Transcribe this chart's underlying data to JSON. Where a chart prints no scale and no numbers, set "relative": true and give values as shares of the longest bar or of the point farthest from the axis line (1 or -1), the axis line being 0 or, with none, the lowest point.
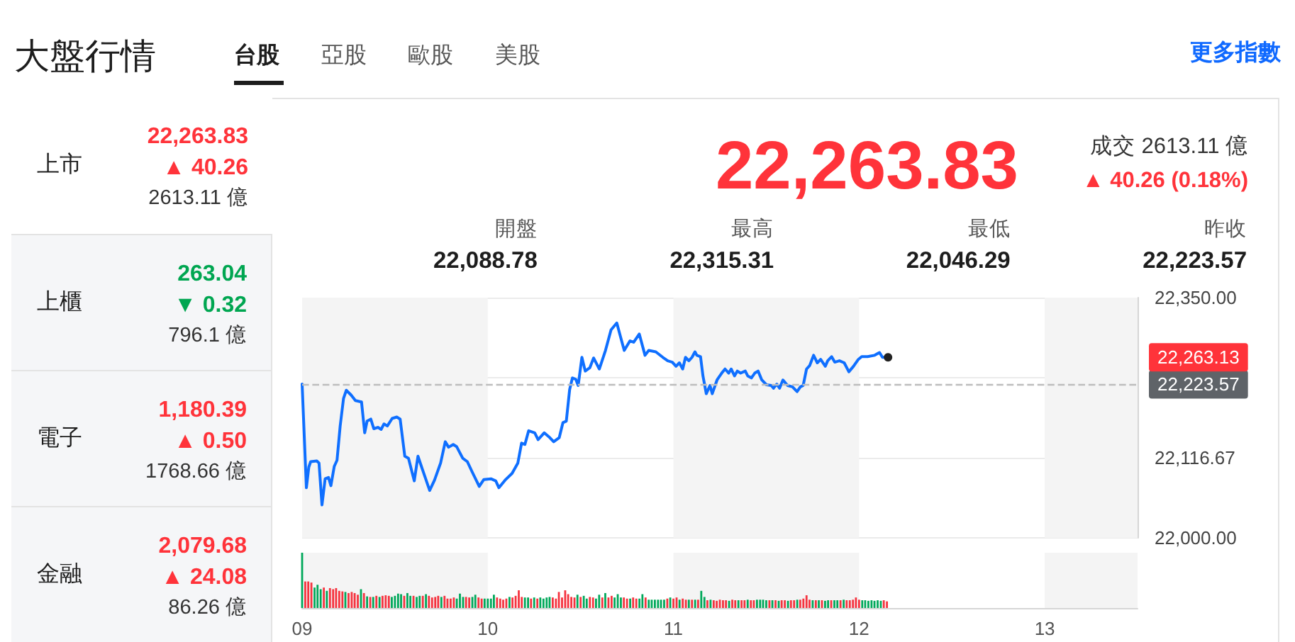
{
  "chart_data": [
    {
      "type": "other",
      "title": "大盤行情",
      "categories": [
        "台股",
        "亞股",
        "歐股",
        "美股"
      ],
      "annotations": [
        "更多指數"
      ]
    },
    {
      "type": "other",
      "title": "22,263.83",
      "subtitle": "▲ 40.26",
      "color": "#ff333a",
      "annotations": [
        "上市",
        "2613.11 億"
      ]
    },
    {
      "type": "other",
      "title": "263.04",
      "subtitle": "▼ 0.32",
      "color": "#00a651",
      "annotations": [
        "上櫃",
        "796.1 億"
      ]
    },
    {
      "type": "other",
      "title": "1,180.39",
      "subtitle": "▲ 0.50",
      "color": "#ff333a",
      "annotations": [
        "電子",
        "1768.66 億"
      ]
    },
    {
      "type": "other",
      "title": "2,079.68",
      "subtitle": "▲ 24.08",
      "color": "#ff333a",
      "annotations": [
        "金融",
        "86.26 億"
      ]
    },
    {
      "type": "other",
      "title": "22,263.83",
      "color": "#ff333a",
      "annotations": [
        "成交 2613.11 億",
        "▲ 40.26 (0.18%)"
      ],
      "categories": [
        "開盤",
        "最高",
        "最低",
        "昨收"
      ],
      "value_labels": [
        "22,088.78",
        "22,315.31",
        "22,046.29",
        "22,223.57"
      ]
    },
    {
      "type": "line",
      "color": "#0f6fff",
      "xlim": [
        9,
        13.5
      ],
      "ylim": [
        22000,
        22350
      ],
      "yticks": [
        {
          "value": 22000,
          "label": "22,000.00"
        },
        {
          "value": 22116.67,
          "label": "22,116.67"
        },
        {
          "value": 22233.33,
          "label": null
        },
        {
          "value": 22350,
          "label": "22,350.00"
        }
      ],
      "grid": "y",
      "tick_labels": "y",
      "x": [
        9,
        9.023,
        9.036,
        9.046,
        9.079,
        9.091,
        9.107,
        9.124,
        9.142,
        9.155,
        9.173,
        9.188,
        9.205,
        9.223,
        9.238,
        9.264,
        9.287,
        9.32,
        9.337,
        9.35,
        9.37,
        9.386,
        9.408,
        9.426,
        9.441,
        9.459,
        9.485,
        9.51,
        9.528,
        9.553,
        9.573,
        9.604,
        9.624,
        9.649,
        9.687,
        9.713,
        9.746,
        9.771,
        9.789,
        9.814,
        9.832,
        9.865,
        9.89,
        9.916,
        9.954,
        9.979,
        10.017,
        10.043,
        10.06,
        10.093,
        10.131,
        10.162,
        10.182,
        10.2,
        10.22,
        10.253,
        10.271,
        10.304,
        10.334,
        10.355,
        10.385,
        10.405,
        10.423,
        10.441,
        10.456,
        10.474,
        10.487,
        10.507,
        10.525,
        10.55,
        10.57,
        10.601,
        10.634,
        10.664,
        10.695,
        10.715,
        10.735,
        10.766,
        10.786,
        10.816,
        10.847,
        10.867,
        10.905,
        10.943,
        10.969,
        10.994,
        11.014,
        11.032,
        11.05,
        11.065,
        11.083,
        11.1,
        11.116,
        11.126,
        11.146,
        11.159,
        11.177,
        11.197,
        11.209,
        11.235,
        11.26,
        11.278,
        11.298,
        11.311,
        11.329,
        11.344,
        11.362,
        11.387,
        11.4,
        11.42,
        11.438,
        11.456,
        11.476,
        11.501,
        11.527,
        11.539,
        11.557,
        11.572,
        11.59,
        11.615,
        11.641,
        11.666,
        11.684,
        11.699,
        11.717,
        11.734,
        11.755,
        11.775,
        11.793,
        11.818,
        11.831,
        11.852,
        11.869,
        11.894,
        11.92,
        11.945,
        11.97,
        11.996,
        12.014,
        12.046,
        12.084,
        12.11,
        12.126,
        12.156
      ],
      "values": [
        22224,
        22073,
        22103,
        22111,
        22112,
        22109,
        22048,
        22086,
        22088,
        22076,
        22104,
        22113,
        22163,
        22203,
        22215,
        22208,
        22200,
        22198,
        22153,
        22170,
        22173,
        22159,
        22161,
        22158,
        22166,
        22163,
        22174,
        22176,
        22173,
        22119,
        22116,
        22083,
        22119,
        22099,
        22069,
        22084,
        22109,
        22140,
        22132,
        22136,
        22133,
        22116,
        22111,
        22096,
        22075,
        22085,
        22086,
        22083,
        22073,
        22084,
        22094,
        22109,
        22138,
        22136,
        22156,
        22153,
        22143,
        22153,
        22146,
        22140,
        22146,
        22168,
        22170,
        22216,
        22233,
        22231,
        22222,
        22263,
        22243,
        22248,
        22262,
        22246,
        22273,
        22303,
        22313,
        22293,
        22273,
        22287,
        22285,
        22297,
        22266,
        22273,
        22271,
        22263,
        22258,
        22256,
        22250,
        22255,
        22246,
        22263,
        22258,
        22263,
        22271,
        22266,
        22264,
        22236,
        22210,
        22222,
        22210,
        22230,
        22240,
        22246,
        22240,
        22246,
        22236,
        22243,
        22240,
        22243,
        22236,
        22233,
        22240,
        22243,
        22230,
        22223,
        22222,
        22218,
        22224,
        22218,
        22230,
        22222,
        22220,
        22213,
        22220,
        22222,
        22246,
        22251,
        22266,
        22255,
        22260,
        22250,
        22258,
        22264,
        22256,
        22258,
        22255,
        22242,
        22250,
        22260,
        22264,
        22264,
        22266,
        22270,
        22263,
        22263
      ],
      "ref_lines": [
        {
          "axis": "y",
          "value": 22223.57,
          "label": "22,223.57",
          "color": "#bdbdbd",
          "line_style": "dashed"
        }
      ],
      "bands": [
        {
          "axis": "x",
          "from": 9,
          "to": 10,
          "color": "#f4f4f4"
        },
        {
          "axis": "x",
          "from": 11,
          "to": 12,
          "color": "#f4f4f4"
        },
        {
          "axis": "x",
          "from": 13,
          "to": 13.5,
          "color": "#f4f4f4"
        }
      ],
      "annotations": [
        {
          "text": "22,263.13",
          "x": 13.5,
          "y": 22263.13
        }
      ]
    },
    {
      "type": "bar",
      "relative": true,
      "xlim": [
        9,
        13.5
      ],
      "xticks": [
        {
          "value": 9,
          "label": "09"
        },
        10,
        11,
        12,
        13
      ],
      "tick_labels": "x",
      "bands": [
        {
          "axis": "x",
          "from": 9,
          "to": 10,
          "color": "#f4f4f4"
        },
        {
          "axis": "x",
          "from": 11,
          "to": 12,
          "color": "#f4f4f4"
        },
        {
          "axis": "x",
          "from": 13,
          "to": 13.5,
          "color": "#f4f4f4"
        }
      ],
      "x": [
        9,
        9.017,
        9.033,
        9.05,
        9.067,
        9.083,
        9.1,
        9.117,
        9.133,
        9.15,
        9.167,
        9.183,
        9.2,
        9.217,
        9.233,
        9.25,
        9.267,
        9.283,
        9.3,
        9.317,
        9.333,
        9.35,
        9.367,
        9.383,
        9.4,
        9.417,
        9.433,
        9.45,
        9.467,
        9.483,
        9.5,
        9.517,
        9.533,
        9.55,
        9.567,
        9.583,
        9.6,
        9.617,
        9.633,
        9.65,
        9.667,
        9.683,
        9.7,
        9.717,
        9.733,
        9.75,
        9.767,
        9.783,
        9.8,
        9.817,
        9.833,
        9.85,
        9.867,
        9.883,
        9.9,
        9.917,
        9.933,
        9.95,
        9.967,
        9.983,
        10,
        10.017,
        10.033,
        10.05,
        10.067,
        10.083,
        10.1,
        10.117,
        10.133,
        10.15,
        10.167,
        10.183,
        10.2,
        10.217,
        10.233,
        10.25,
        10.267,
        10.283,
        10.3,
        10.317,
        10.333,
        10.35,
        10.367,
        10.383,
        10.4,
        10.417,
        10.433,
        10.45,
        10.467,
        10.483,
        10.5,
        10.517,
        10.533,
        10.55,
        10.567,
        10.583,
        10.6,
        10.617,
        10.633,
        10.65,
        10.667,
        10.683,
        10.7,
        10.717,
        10.733,
        10.75,
        10.767,
        10.783,
        10.8,
        10.817,
        10.833,
        10.85,
        10.867,
        10.883,
        10.9,
        10.917,
        10.933,
        10.95,
        10.967,
        10.983,
        11,
        11.017,
        11.033,
        11.05,
        11.067,
        11.083,
        11.1,
        11.117,
        11.133,
        11.15,
        11.167,
        11.183,
        11.2,
        11.217,
        11.233,
        11.25,
        11.267,
        11.283,
        11.3,
        11.317,
        11.333,
        11.35,
        11.367,
        11.383,
        11.4,
        11.417,
        11.433,
        11.45,
        11.467,
        11.483,
        11.5,
        11.517,
        11.533,
        11.55,
        11.567,
        11.583,
        11.6,
        11.617,
        11.633,
        11.65,
        11.667,
        11.683,
        11.7,
        11.717,
        11.733,
        11.75,
        11.767,
        11.783,
        11.8,
        11.817,
        11.833,
        11.85,
        11.867,
        11.883,
        11.9,
        11.917,
        11.933,
        11.95,
        11.967,
        11.983,
        12,
        12.017,
        12.033,
        12.05,
        12.067,
        12.083,
        12.1,
        12.117,
        12.133,
        12.15
      ],
      "values": [
        1,
        0.48,
        0.48,
        0.46,
        0.37,
        0.42,
        0.34,
        0.37,
        0.31,
        0.36,
        0.34,
        0.36,
        0.31,
        0.3,
        0.29,
        0.27,
        0.29,
        0.27,
        0.24,
        0.34,
        0.27,
        0.21,
        0.2,
        0.2,
        0.22,
        0.2,
        0.22,
        0.23,
        0.22,
        0.2,
        0.22,
        0.26,
        0.25,
        0.22,
        0.27,
        0.22,
        0.22,
        0.2,
        0.22,
        0.22,
        0.25,
        0.22,
        0.19,
        0.2,
        0.22,
        0.2,
        0.22,
        0.17,
        0.17,
        0.19,
        0.17,
        0.26,
        0.2,
        0.2,
        0.19,
        0.2,
        0.24,
        0.19,
        0.17,
        0.17,
        0.17,
        0.17,
        0.24,
        0.19,
        0.17,
        0.15,
        0.17,
        0.2,
        0.19,
        0.22,
        0.32,
        0.2,
        0.19,
        0.19,
        0.17,
        0.19,
        0.17,
        0.19,
        0.17,
        0.19,
        0.2,
        0.19,
        0.17,
        0.29,
        0.19,
        0.32,
        0.25,
        0.2,
        0.19,
        0.24,
        0.2,
        0.22,
        0.17,
        0.2,
        0.19,
        0.17,
        0.24,
        0.19,
        0.27,
        0.19,
        0.22,
        0.19,
        0.25,
        0.19,
        0.19,
        0.17,
        0.17,
        0.19,
        0.17,
        0.17,
        0.25,
        0.19,
        0.15,
        0.15,
        0.15,
        0.15,
        0.15,
        0.15,
        0.17,
        0.19,
        0.17,
        0.19,
        0.15,
        0.17,
        0.15,
        0.15,
        0.15,
        0.15,
        0.15,
        0.31,
        0.2,
        0.14,
        0.15,
        0.14,
        0.13,
        0.15,
        0.14,
        0.14,
        0.13,
        0.15,
        0.14,
        0.14,
        0.14,
        0.14,
        0.15,
        0.14,
        0.14,
        0.15,
        0.15,
        0.15,
        0.14,
        0.14,
        0.14,
        0.14,
        0.13,
        0.14,
        0.14,
        0.13,
        0.14,
        0.14,
        0.15,
        0.15,
        0.17,
        0.23,
        0.15,
        0.14,
        0.14,
        0.14,
        0.14,
        0.13,
        0.14,
        0.14,
        0.14,
        0.14,
        0.14,
        0.15,
        0.14,
        0.14,
        0.15,
        0.19,
        0.15,
        0.14,
        0.14,
        0.13,
        0.14,
        0.13,
        0.14,
        0.13,
        0.14,
        0.12
      ],
      "colors": [
        "#00a85a",
        "#f5333f",
        "#f5333f",
        "#f5333f",
        "#00a85a",
        "#00a85a",
        "#00a85a",
        "#f5333f",
        "#00a85a",
        "#f5333f",
        "#f5333f",
        "#f5333f",
        "#f5333f",
        "#f5333f",
        "#00a85a",
        "#f5333f",
        "#f5333f",
        "#f5333f",
        "#f5333f",
        "#00a85a",
        "#f5333f",
        "#00a85a",
        "#f5333f",
        "#00a85a",
        "#f5333f",
        "#00a85a",
        "#f5333f",
        "#f5333f",
        "#f5333f",
        "#00a85a",
        "#00a85a",
        "#00a85a",
        "#00a85a",
        "#f5333f",
        "#00a85a",
        "#00a85a",
        "#f5333f",
        "#00a85a",
        "#00a85a",
        "#f5333f",
        "#00a85a",
        "#f5333f",
        "#f5333f",
        "#f5333f",
        "#f5333f",
        "#00a85a",
        "#f5333f",
        "#f5333f",
        "#f5333f",
        "#f5333f",
        "#00a85a",
        "#00a85a",
        "#00a85a",
        "#f5333f",
        "#f5333f",
        "#00a85a",
        "#00a85a",
        "#f5333f",
        "#f5333f",
        "#00a85a",
        "#00a85a",
        "#00a85a",
        "#00a85a",
        "#f5333f",
        "#f5333f",
        "#f5333f",
        "#f5333f",
        "#00a85a",
        "#f5333f",
        "#f5333f",
        "#f5333f",
        "#f5333f",
        "#00a85a",
        "#00a85a",
        "#f5333f",
        "#00a85a",
        "#f5333f",
        "#00a85a",
        "#00a85a",
        "#00a85a",
        "#00a85a",
        "#f5333f",
        "#f5333f",
        "#f5333f",
        "#f5333f",
        "#f5333f",
        "#f5333f",
        "#f5333f",
        "#f5333f",
        "#00a85a",
        "#f5333f",
        "#00a85a",
        "#00a85a",
        "#f5333f",
        "#f5333f",
        "#00a85a",
        "#00a85a",
        "#f5333f",
        "#00a85a",
        "#f5333f",
        "#f5333f",
        "#00a85a",
        "#00a85a",
        "#00a85a",
        "#f5333f",
        "#f5333f",
        "#00a85a",
        "#f5333f",
        "#f5333f",
        "#00a85a",
        "#00a85a",
        "#f5333f",
        "#00a85a",
        "#00a85a",
        "#00a85a",
        "#00a85a",
        "#00a85a",
        "#00a85a",
        "#f5333f",
        "#00a85a",
        "#f5333f",
        "#f5333f",
        "#00a85a",
        "#f5333f",
        "#f5333f",
        "#00a85a",
        "#f5333f",
        "#00a85a",
        "#f5333f",
        "#00a85a",
        "#00a85a",
        "#f5333f",
        "#00a85a",
        "#f5333f",
        "#f5333f",
        "#f5333f",
        "#f5333f",
        "#f5333f",
        "#00a85a",
        "#f5333f",
        "#f5333f",
        "#00a85a",
        "#f5333f",
        "#f5333f",
        "#00a85a",
        "#f5333f",
        "#f5333f",
        "#00a85a",
        "#00a85a",
        "#00a85a",
        "#00a85a",
        "#f5333f",
        "#00a85a",
        "#f5333f",
        "#00a85a",
        "#f5333f",
        "#f5333f",
        "#00a85a",
        "#f5333f",
        "#f5333f",
        "#00a85a",
        "#f5333f",
        "#f5333f",
        "#f5333f",
        "#f5333f",
        "#00a85a",
        "#f5333f",
        "#00a85a",
        "#f5333f",
        "#00a85a",
        "#00a85a",
        "#f5333f",
        "#00a85a",
        "#00a85a",
        "#f5333f",
        "#00a85a",
        "#f5333f",
        "#f5333f",
        "#f5333f",
        "#f5333f",
        "#f5333f",
        "#00a85a",
        "#00a85a",
        "#00a85a",
        "#00a85a",
        "#00a85a",
        "#00a85a",
        "#00a85a",
        "#f5333f",
        "#f5333f"
      ]
    }
  ]
}
